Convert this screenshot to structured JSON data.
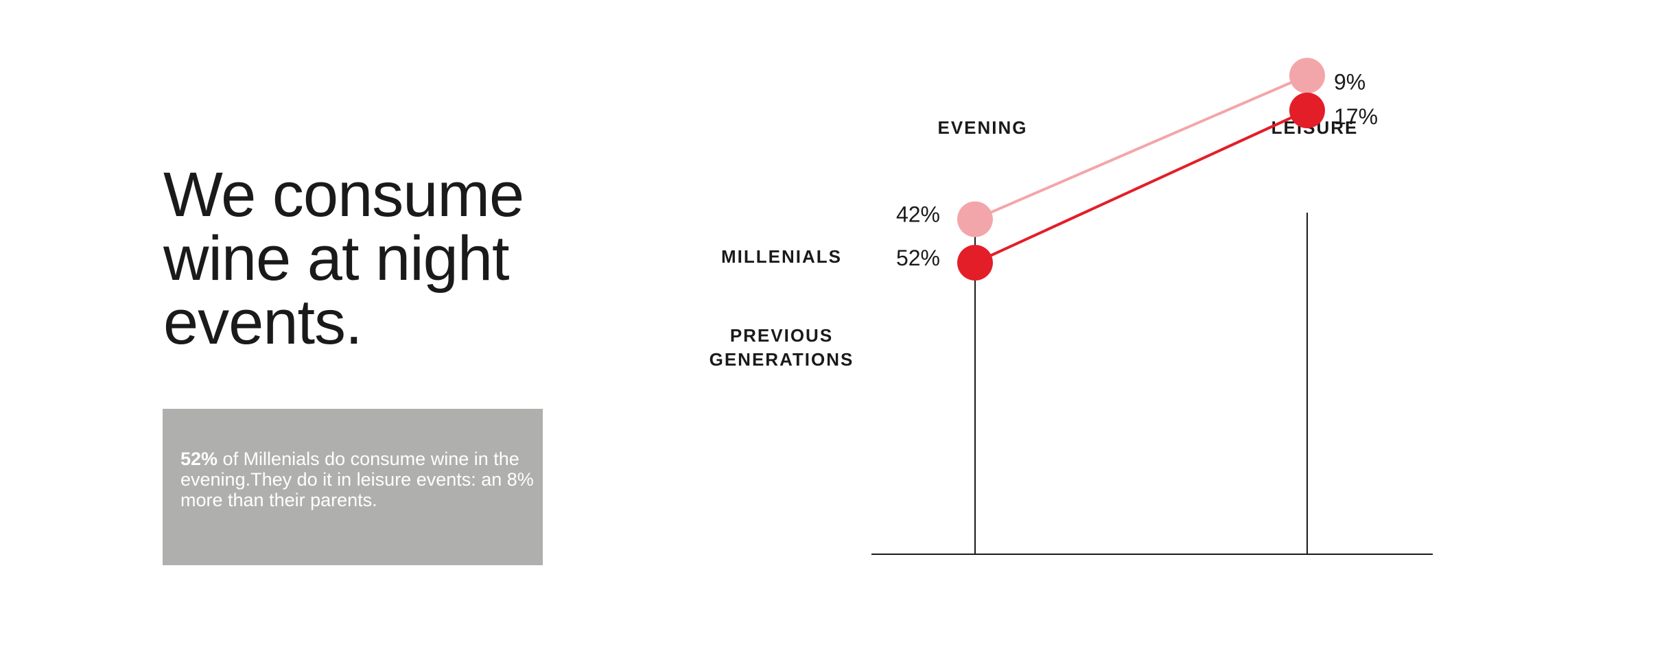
{
  "headline": {
    "lines": [
      "We consume",
      "wine at night",
      "events."
    ]
  },
  "note": {
    "highlight": "52%",
    "text": " of Millenials do consume wine in the evening.They do it in leisure events: an 8% more than their parents."
  },
  "chart_data": {
    "type": "line",
    "categories": [
      "EVENING",
      "LEISURE"
    ],
    "series": [
      {
        "name": "MILLENIALS",
        "name_lines": [
          "MILLENIALS"
        ],
        "values": [
          52,
          17
        ],
        "labels": [
          "52%",
          "17%"
        ],
        "color": "#e31e28"
      },
      {
        "name": "PREVIOUS GENERATIONS",
        "name_lines": [
          "PREVIOUS",
          "GENERATIONS"
        ],
        "values": [
          42,
          9
        ],
        "labels": [
          "42%",
          "9%"
        ],
        "color": "#f3a6a9"
      }
    ],
    "ylim": [
      0,
      80
    ],
    "axis_color": "#1a1a1a"
  }
}
